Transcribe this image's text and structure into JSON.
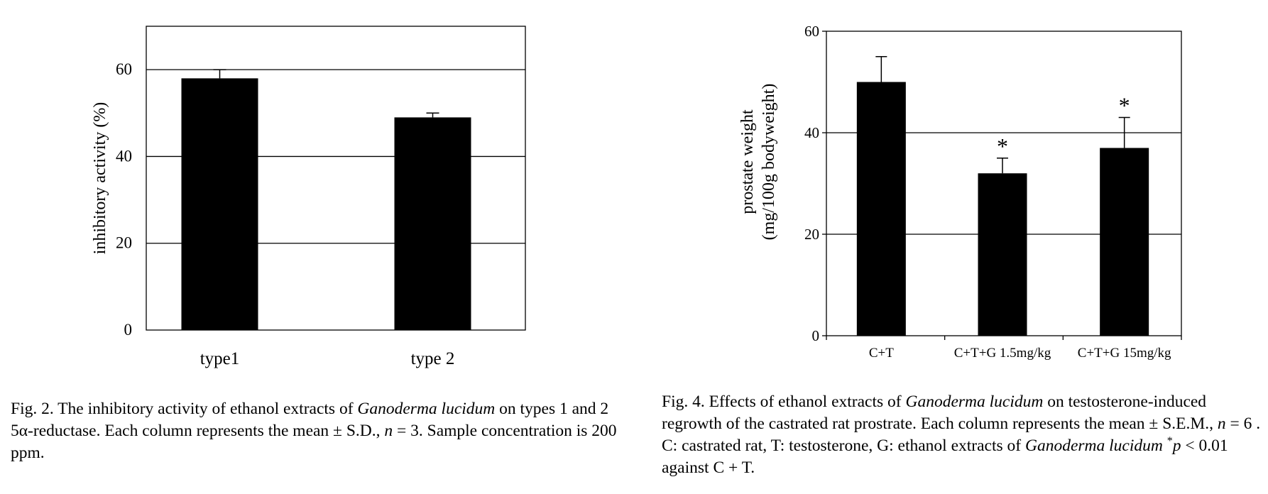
{
  "chart_data": [
    {
      "type": "bar",
      "categories": [
        "type1",
        "type 2"
      ],
      "values": [
        58,
        49
      ],
      "errors": [
        2,
        1
      ],
      "title": "",
      "xlabel": "",
      "ylabel": "inhibitory activity (%)",
      "ylim": [
        0,
        70
      ],
      "yticks": [
        "0",
        "20",
        "40",
        "60"
      ],
      "grid": true,
      "bar_color": "#000000"
    },
    {
      "type": "bar",
      "categories": [
        "C+T",
        "C+T+G 1.5mg/kg",
        "C+T+G 15mg/kg"
      ],
      "values": [
        50,
        32,
        37
      ],
      "errors": [
        5,
        3,
        6
      ],
      "annotations": [
        "",
        "*",
        "*"
      ],
      "title": "",
      "xlabel": "",
      "ylabel_line1": "prostate weight",
      "ylabel_line2": "(mg/100g bodyweight)",
      "ylim": [
        0,
        60
      ],
      "yticks": [
        "0",
        "20",
        "40",
        "60"
      ],
      "grid": true,
      "bar_color": "#000000"
    }
  ],
  "captions": {
    "fig2": {
      "p1": "Fig. 2.  The inhibitory activity of ethanol extracts of ",
      "i1": "Ganoderma lucidum",
      "p2": " on types 1 and 2 5α-reductase. Each column represents the mean ± S.D., ",
      "i2": "n",
      "p3": " = 3. Sample concentration is 200 ppm."
    },
    "fig4": {
      "p1": "Fig. 4.  Effects of ethanol extracts of ",
      "i1": "Ganoderma lucidum",
      "p2": " on testosterone-induced regrowth of the castrated rat prostrate. Each column represents the mean ± S.E.M., ",
      "i2": "n",
      "p3": " = 6 . C: castrated rat, T: testosterone, G: ethanol extracts of ",
      "i3": "Ganoderma lucidum",
      "p4": " ",
      "sup": "*",
      "i4": "p",
      "p5": " < 0.01 against C + T."
    }
  }
}
